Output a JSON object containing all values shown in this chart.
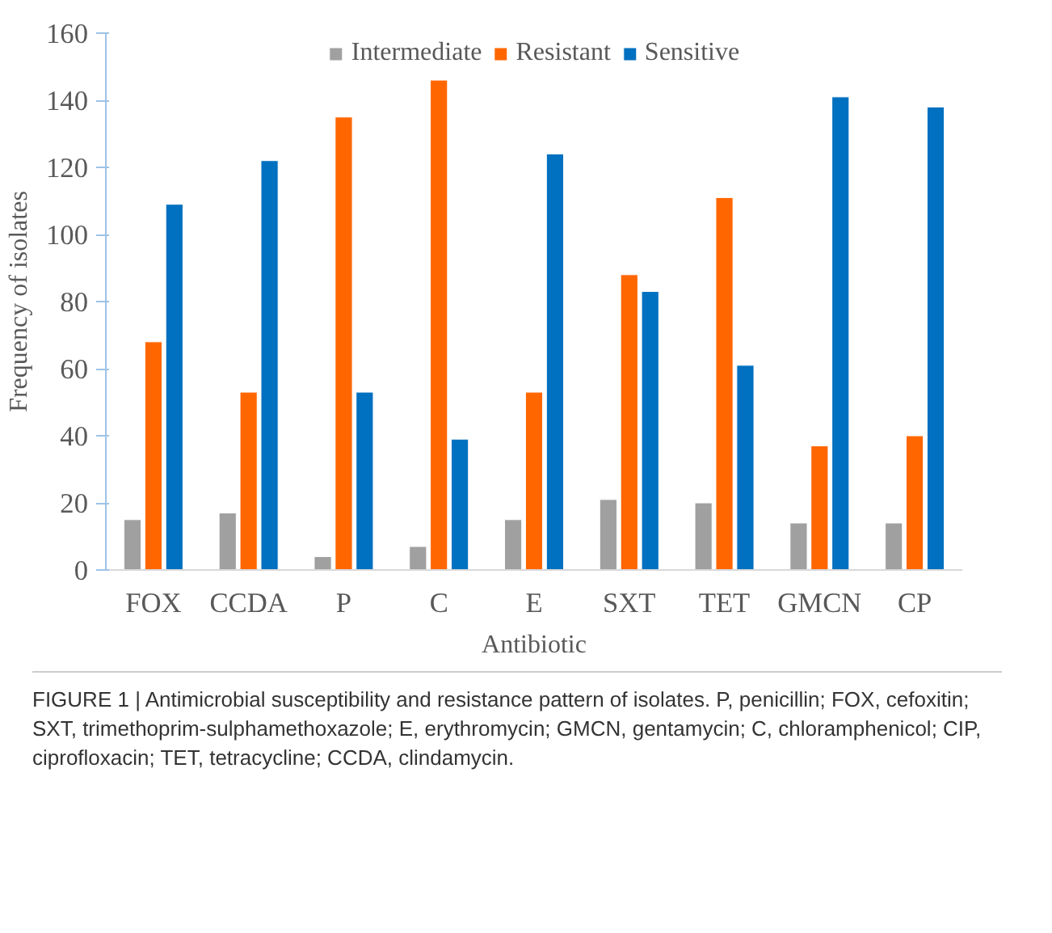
{
  "chart_data": {
    "type": "bar",
    "xlabel": "Antibiotic",
    "ylabel": "Frequency of isolates",
    "categories": [
      "FOX",
      "CCDA",
      "P",
      "C",
      "E",
      "SXT",
      "TET",
      "GMCN",
      "CP"
    ],
    "series": [
      {
        "name": "Intermediate",
        "color": "#a0a0a0",
        "values": [
          15,
          17,
          4,
          7,
          15,
          21,
          20,
          14,
          14
        ]
      },
      {
        "name": "Resistant",
        "color": "#ff6600",
        "values": [
          68,
          53,
          135,
          146,
          53,
          88,
          111,
          37,
          40
        ]
      },
      {
        "name": "Sensitive",
        "color": "#0070c0",
        "values": [
          109,
          122,
          53,
          39,
          124,
          83,
          61,
          141,
          138
        ]
      }
    ],
    "ylim": [
      0,
      160
    ],
    "yticks": [
      0,
      20,
      40,
      60,
      80,
      100,
      120,
      140,
      160
    ],
    "grid": false,
    "legend": "top",
    "annotations": [
      "FIGURE 1 | Antimicrobial susceptibility and resistance pattern of isolates. P, penicillin; FOX, cefoxitin; SXT, trimethoprim-sulphamethoxazole; E, erythromycin; GMCN, gentamycin; C, chloramphenicol; CIP, ciprofloxacin; TET, tetracycline; CCDA, clindamycin."
    ]
  }
}
